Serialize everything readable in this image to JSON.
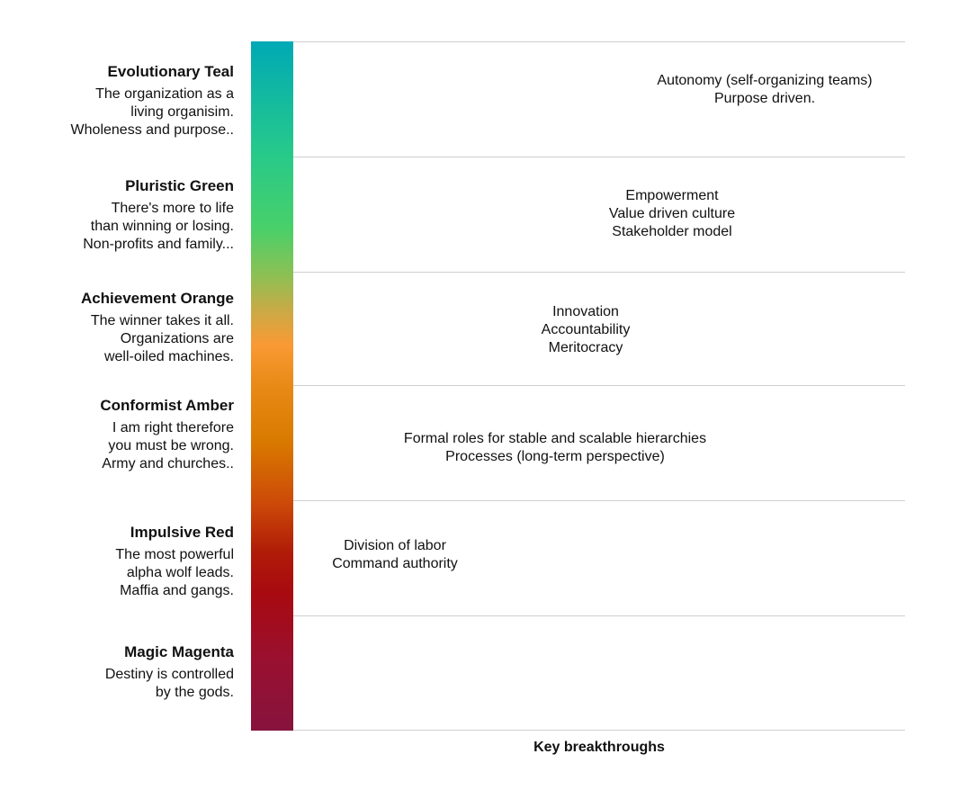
{
  "stages": [
    {
      "title": "Evolutionary Teal",
      "description": [
        "The organization as a",
        "living organisim.",
        "Wholeness and purpose.."
      ],
      "breakthroughs": [
        "Autonomy (self-organizing teams)",
        "Purpose driven."
      ]
    },
    {
      "title": "Pluristic Green",
      "description": [
        "There's more to life",
        "than winning or losing.",
        "Non-profits and family..."
      ],
      "breakthroughs": [
        "Empowerment",
        "Value driven culture",
        "Stakeholder model"
      ]
    },
    {
      "title": "Achievement Orange",
      "description": [
        "The winner takes it all.",
        "Organizations are",
        "well-oiled machines."
      ],
      "breakthroughs": [
        "Innovation",
        "Accountability",
        "Meritocracy"
      ]
    },
    {
      "title": "Conformist Amber",
      "description": [
        "I am right therefore",
        "you must be wrong.",
        "Army and churches.."
      ],
      "breakthroughs": [
        "Formal roles for stable and scalable hierarchies",
        "Processes (long-term perspective)"
      ]
    },
    {
      "title": "Impulsive Red",
      "description": [
        "The most powerful",
        "alpha wolf leads.",
        "Maffia and gangs."
      ],
      "breakthroughs": [
        "Division of labor",
        "Command authority"
      ]
    },
    {
      "title": "Magic Magenta",
      "description": [
        "Destiny is controlled",
        "by the gods."
      ],
      "breakthroughs": []
    }
  ],
  "footer": "Key breakthroughs"
}
